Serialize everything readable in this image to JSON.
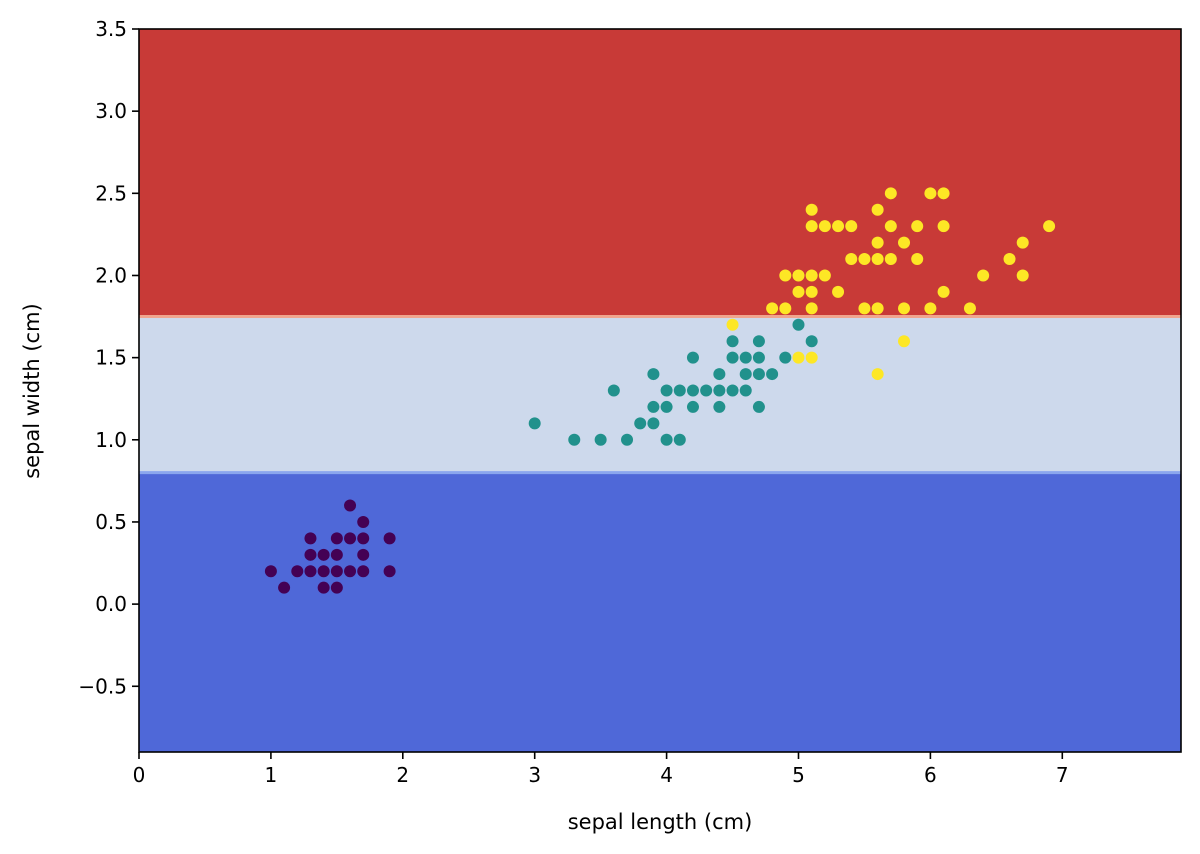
{
  "chart_data": {
    "type": "scatter",
    "title": "",
    "xlabel": "sepal length (cm)",
    "ylabel": "sepal width (cm)",
    "xlim": [
      0,
      7.9
    ],
    "ylim": [
      -0.9,
      3.5
    ],
    "xticks": [
      0,
      1,
      2,
      3,
      4,
      5,
      6,
      7
    ],
    "xtick_labels": [
      "0",
      "1",
      "2",
      "3",
      "4",
      "5",
      "6",
      "7"
    ],
    "yticks": [
      -0.5,
      0.0,
      0.5,
      1.0,
      1.5,
      2.0,
      2.5,
      3.0,
      3.5
    ],
    "ytick_labels": [
      "−0.5",
      "0.0",
      "0.5",
      "1.0",
      "1.5",
      "2.0",
      "2.5",
      "3.0",
      "3.5"
    ],
    "grid": false,
    "legend": "none",
    "decision_regions": [
      {
        "y_from": -0.9,
        "y_to": 0.8,
        "color": "#4f68d8"
      },
      {
        "y_from": 0.8,
        "y_to": 1.75,
        "color": "#cdd9ec"
      },
      {
        "y_from": 1.75,
        "y_to": 3.5,
        "color": "#c83a37"
      }
    ],
    "series": [
      {
        "color": "#440154",
        "points": [
          [
            1.0,
            0.2
          ],
          [
            1.1,
            0.1
          ],
          [
            1.2,
            0.2
          ],
          [
            1.3,
            0.2
          ],
          [
            1.3,
            0.3
          ],
          [
            1.3,
            0.4
          ],
          [
            1.4,
            0.1
          ],
          [
            1.4,
            0.2
          ],
          [
            1.4,
            0.3
          ],
          [
            1.5,
            0.1
          ],
          [
            1.5,
            0.2
          ],
          [
            1.5,
            0.3
          ],
          [
            1.5,
            0.4
          ],
          [
            1.6,
            0.2
          ],
          [
            1.6,
            0.4
          ],
          [
            1.6,
            0.6
          ],
          [
            1.7,
            0.2
          ],
          [
            1.7,
            0.3
          ],
          [
            1.7,
            0.4
          ],
          [
            1.7,
            0.5
          ],
          [
            1.9,
            0.2
          ],
          [
            1.9,
            0.4
          ]
        ]
      },
      {
        "color": "#21918c",
        "points": [
          [
            3.0,
            1.1
          ],
          [
            3.3,
            1.0
          ],
          [
            3.5,
            1.0
          ],
          [
            3.6,
            1.3
          ],
          [
            3.7,
            1.0
          ],
          [
            3.8,
            1.1
          ],
          [
            3.9,
            1.1
          ],
          [
            3.9,
            1.2
          ],
          [
            3.9,
            1.4
          ],
          [
            4.0,
            1.0
          ],
          [
            4.0,
            1.2
          ],
          [
            4.0,
            1.3
          ],
          [
            4.1,
            1.0
          ],
          [
            4.1,
            1.3
          ],
          [
            4.2,
            1.2
          ],
          [
            4.2,
            1.3
          ],
          [
            4.2,
            1.5
          ],
          [
            4.3,
            1.3
          ],
          [
            4.4,
            1.2
          ],
          [
            4.4,
            1.3
          ],
          [
            4.4,
            1.4
          ],
          [
            4.5,
            1.3
          ],
          [
            4.5,
            1.5
          ],
          [
            4.5,
            1.6
          ],
          [
            4.6,
            1.3
          ],
          [
            4.6,
            1.4
          ],
          [
            4.6,
            1.5
          ],
          [
            4.7,
            1.2
          ],
          [
            4.7,
            1.4
          ],
          [
            4.7,
            1.5
          ],
          [
            4.7,
            1.6
          ],
          [
            4.8,
            1.4
          ],
          [
            4.9,
            1.5
          ],
          [
            5.0,
            1.7
          ],
          [
            5.1,
            1.6
          ]
        ]
      },
      {
        "color": "#fde725",
        "points": [
          [
            4.5,
            1.7
          ],
          [
            4.8,
            1.8
          ],
          [
            4.9,
            1.8
          ],
          [
            4.9,
            2.0
          ],
          [
            5.0,
            1.5
          ],
          [
            5.0,
            1.9
          ],
          [
            5.0,
            2.0
          ],
          [
            5.1,
            1.5
          ],
          [
            5.1,
            1.8
          ],
          [
            5.1,
            1.9
          ],
          [
            5.1,
            2.0
          ],
          [
            5.1,
            2.3
          ],
          [
            5.1,
            2.4
          ],
          [
            5.2,
            2.0
          ],
          [
            5.2,
            2.3
          ],
          [
            5.3,
            1.9
          ],
          [
            5.3,
            2.3
          ],
          [
            5.4,
            2.1
          ],
          [
            5.4,
            2.3
          ],
          [
            5.5,
            1.8
          ],
          [
            5.5,
            2.1
          ],
          [
            5.6,
            1.4
          ],
          [
            5.6,
            1.8
          ],
          [
            5.6,
            2.1
          ],
          [
            5.6,
            2.2
          ],
          [
            5.6,
            2.4
          ],
          [
            5.7,
            2.1
          ],
          [
            5.7,
            2.3
          ],
          [
            5.7,
            2.5
          ],
          [
            5.8,
            1.6
          ],
          [
            5.8,
            1.8
          ],
          [
            5.8,
            2.2
          ],
          [
            5.9,
            2.1
          ],
          [
            5.9,
            2.3
          ],
          [
            6.0,
            1.8
          ],
          [
            6.0,
            2.5
          ],
          [
            6.1,
            1.9
          ],
          [
            6.1,
            2.3
          ],
          [
            6.1,
            2.5
          ],
          [
            6.3,
            1.8
          ],
          [
            6.4,
            2.0
          ],
          [
            6.6,
            2.1
          ],
          [
            6.7,
            2.0
          ],
          [
            6.7,
            2.2
          ],
          [
            6.9,
            2.3
          ]
        ]
      }
    ]
  }
}
